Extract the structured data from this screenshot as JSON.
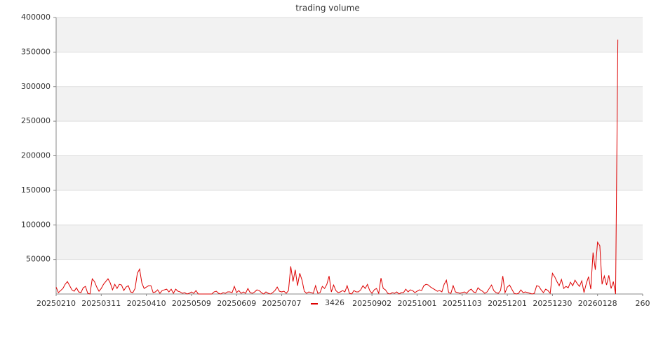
{
  "chart_data": {
    "type": "line",
    "title": "trading volume",
    "series": [
      {
        "name": "3426",
        "color": "#dd0000",
        "values": [
          10000,
          2000,
          5000,
          8000,
          14000,
          18000,
          12000,
          6000,
          4000,
          9000,
          3000,
          2000,
          9000,
          11000,
          1000,
          0,
          22000,
          18000,
          10000,
          4000,
          8000,
          14000,
          18000,
          22000,
          16000,
          6000,
          14000,
          8000,
          14000,
          13000,
          5000,
          10000,
          12000,
          3000,
          2000,
          8000,
          30000,
          36000,
          16000,
          8000,
          10000,
          12000,
          12000,
          2000,
          3000,
          6000,
          1000,
          5000,
          6000,
          7000,
          3000,
          7000,
          1000,
          7000,
          4000,
          3000,
          1000,
          2000,
          0,
          1000,
          3000,
          1000,
          5000,
          0,
          0,
          0,
          0,
          0,
          0,
          0,
          3000,
          4000,
          1000,
          0,
          2000,
          1000,
          3000,
          3000,
          2000,
          11000,
          2000,
          5000,
          1000,
          3000,
          1000,
          8000,
          2000,
          1000,
          3000,
          6000,
          5000,
          2000,
          0,
          3000,
          1000,
          0,
          2000,
          5000,
          10000,
          4000,
          3000,
          4000,
          1000,
          5000,
          40000,
          18000,
          35000,
          12000,
          30000,
          20000,
          4000,
          1000,
          3000,
          2000,
          1000,
          12000,
          1000,
          2000,
          11000,
          8000,
          14000,
          26000,
          3000,
          13000,
          5000,
          2000,
          3000,
          5000,
          3000,
          12000,
          1000,
          0,
          5000,
          3000,
          3000,
          6000,
          12000,
          8000,
          14000,
          5000,
          1000,
          6000,
          8000,
          1000,
          23000,
          8000,
          6000,
          1000,
          0,
          2000,
          1000,
          3000,
          0,
          2000,
          2000,
          7000,
          3000,
          6000,
          5000,
          2000,
          4000,
          6000,
          5000,
          12000,
          14000,
          13000,
          10000,
          8000,
          6000,
          4000,
          5000,
          3000,
          14000,
          20000,
          2000,
          1000,
          12000,
          3000,
          2000,
          1000,
          2000,
          3000,
          1000,
          5000,
          7000,
          3000,
          2000,
          9000,
          6000,
          4000,
          1000,
          3000,
          8000,
          13000,
          5000,
          2000,
          1000,
          5000,
          26000,
          2000,
          10000,
          13000,
          7000,
          1000,
          0,
          1000,
          6000,
          2000,
          3000,
          2000,
          1000,
          0,
          1000,
          12000,
          11000,
          6000,
          2000,
          7000,
          5000,
          1000,
          30000,
          25000,
          18000,
          12000,
          21000,
          8000,
          11000,
          9000,
          17000,
          12000,
          20000,
          15000,
          11000,
          19000,
          2000,
          15000,
          25000,
          7000,
          60000,
          35000,
          75000,
          70000,
          14000,
          26000,
          13000,
          27000,
          8000,
          18000,
          0,
          368000
        ]
      }
    ],
    "xlim": [
      0,
      260
    ],
    "xticks": [
      {
        "value": 0,
        "label": "20250210"
      },
      {
        "value": 20,
        "label": "20250311"
      },
      {
        "value": 40,
        "label": "20250410"
      },
      {
        "value": 60,
        "label": "20250509"
      },
      {
        "value": 80,
        "label": "20250609"
      },
      {
        "value": 100,
        "label": "20250707"
      },
      {
        "value": 140,
        "label": "20250902"
      },
      {
        "value": 160,
        "label": "20251001"
      },
      {
        "value": 180,
        "label": "20251103"
      },
      {
        "value": 200,
        "label": "20251201"
      },
      {
        "value": 220,
        "label": "20251230"
      },
      {
        "value": 240,
        "label": "20260128"
      },
      {
        "value": 260,
        "label": "260"
      }
    ],
    "ylim": [
      0,
      400000
    ],
    "yticks": [
      50000,
      100000,
      150000,
      200000,
      250000,
      300000,
      350000,
      400000
    ],
    "grid": true,
    "bands": true,
    "legend": "bottom"
  }
}
